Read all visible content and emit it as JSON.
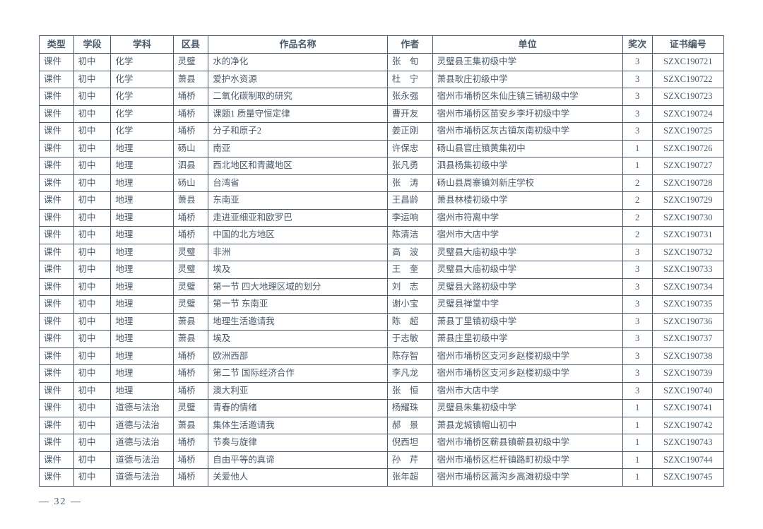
{
  "columns": [
    "类型",
    "学段",
    "学科",
    "区县",
    "作品名称",
    "作者",
    "单位",
    "奖次",
    "证书编号"
  ],
  "rows": [
    [
      "课件",
      "初中",
      "化学",
      "灵璧",
      "水的净化",
      "张　旬",
      "灵璧县王集初级中学",
      "3",
      "SZXC190721"
    ],
    [
      "课件",
      "初中",
      "化学",
      "萧县",
      "爱护水资源",
      "杜　宁",
      "萧县耿庄初级中学",
      "3",
      "SZXC190722"
    ],
    [
      "课件",
      "初中",
      "化学",
      "埇桥",
      "二氧化碳制取的研究",
      "张永强",
      "宿州市埇桥区朱仙庄镇三铺初级中学",
      "3",
      "SZXC190723"
    ],
    [
      "课件",
      "初中",
      "化学",
      "埇桥",
      "课题1 质量守恒定律",
      "曹开友",
      "宿州市埇桥区苗安乡李圩初级中学",
      "3",
      "SZXC190724"
    ],
    [
      "课件",
      "初中",
      "化学",
      "埇桥",
      "分子和原子2",
      "姜正刚",
      "宿州市埇桥区灰古镇灰南初级中学",
      "3",
      "SZXC190725"
    ],
    [
      "课件",
      "初中",
      "地理",
      "砀山",
      "南亚",
      "许保忠",
      "砀山县官庄镇黄集初中",
      "1",
      "SZXC190726"
    ],
    [
      "课件",
      "初中",
      "地理",
      "泗县",
      "西北地区和青藏地区",
      "张凡勇",
      "泗县杨集初级中学",
      "1",
      "SZXC190727"
    ],
    [
      "课件",
      "初中",
      "地理",
      "砀山",
      "台湾省",
      "张　涛",
      "砀山县周寨镇刘新庄学校",
      "2",
      "SZXC190728"
    ],
    [
      "课件",
      "初中",
      "地理",
      "萧县",
      "东南亚",
      "王昌龄",
      "萧县林楼初级中学",
      "2",
      "SZXC190729"
    ],
    [
      "课件",
      "初中",
      "地理",
      "埇桥",
      "走进亚细亚和欧罗巴",
      "李运响",
      "宿州市符离中学",
      "2",
      "SZXC190730"
    ],
    [
      "课件",
      "初中",
      "地理",
      "埇桥",
      "中国的北方地区",
      "陈清洁",
      "宿州市大店中学",
      "2",
      "SZXC190731"
    ],
    [
      "课件",
      "初中",
      "地理",
      "灵璧",
      "非洲",
      "高　波",
      "灵璧县大庙初级中学",
      "3",
      "SZXC190732"
    ],
    [
      "课件",
      "初中",
      "地理",
      "灵璧",
      "埃及",
      "王　奎",
      "灵璧县大庙初级中学",
      "3",
      "SZXC190733"
    ],
    [
      "课件",
      "初中",
      "地理",
      "灵璧",
      "第一节 四大地理区域的划分",
      "刘　志",
      "灵璧县大路初级中学",
      "3",
      "SZXC190734"
    ],
    [
      "课件",
      "初中",
      "地理",
      "灵璧",
      "第一节 东南亚",
      "谢小宝",
      "灵璧县禅堂中学",
      "3",
      "SZXC190735"
    ],
    [
      "课件",
      "初中",
      "地理",
      "萧县",
      "地理生活邀请我",
      "陈　超",
      "萧县丁里镇初级中学",
      "3",
      "SZXC190736"
    ],
    [
      "课件",
      "初中",
      "地理",
      "萧县",
      "埃及",
      "于志敏",
      "萧县庄里初级中学",
      "3",
      "SZXC190737"
    ],
    [
      "课件",
      "初中",
      "地理",
      "埇桥",
      "欧洲西部",
      "陈存智",
      "宿州市埇桥区支河乡赵楼初级中学",
      "3",
      "SZXC190738"
    ],
    [
      "课件",
      "初中",
      "地理",
      "埇桥",
      "第二节 国际经济合作",
      "李凡龙",
      "宿州市埇桥区支河乡赵楼初级中学",
      "3",
      "SZXC190739"
    ],
    [
      "课件",
      "初中",
      "地理",
      "埇桥",
      "澳大利亚",
      "张　恒",
      "宿州市大店中学",
      "3",
      "SZXC190740"
    ],
    [
      "课件",
      "初中",
      "道德与法治",
      "灵璧",
      "青春的情绪",
      "杨耀珠",
      "灵璧县朱集初级中学",
      "1",
      "SZXC190741"
    ],
    [
      "课件",
      "初中",
      "道德与法治",
      "萧县",
      "集体生活邀请我",
      "郝　景",
      "萧县龙城镇帽山初中",
      "1",
      "SZXC190742"
    ],
    [
      "课件",
      "初中",
      "道德与法治",
      "埇桥",
      "节奏与旋律",
      "倪西坦",
      "宿州市埇桥区蕲县镇蕲县初级中学",
      "1",
      "SZXC190743"
    ],
    [
      "课件",
      "初中",
      "道德与法治",
      "埇桥",
      "自由平等的真谛",
      "孙　芹",
      "宿州市埇桥区栏杆镇路町初级中学",
      "1",
      "SZXC190744"
    ],
    [
      "课件",
      "初中",
      "道德与法治",
      "埇桥",
      "关爱他人",
      "张年超",
      "宿州市埇桥区蒿沟乡高滩初级中学",
      "1",
      "SZXC190745"
    ]
  ],
  "pageNumber": "— 32 —"
}
